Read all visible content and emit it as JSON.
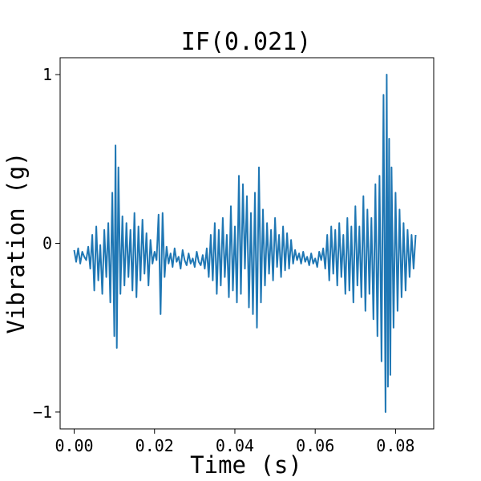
{
  "chart_data": {
    "type": "line",
    "title": "IF(0.021)",
    "xlabel": "Time (s)",
    "ylabel": "Vibration (g)",
    "xlim": [
      -0.0035,
      0.0895
    ],
    "ylim": [
      -1.1,
      1.1
    ],
    "xticks": [
      0.0,
      0.02,
      0.04,
      0.06,
      0.08
    ],
    "xtick_labels": [
      "0.00",
      "0.02",
      "0.04",
      "0.06",
      "0.08"
    ],
    "yticks": [
      -1,
      0,
      1
    ],
    "ytick_labels": [
      "−1",
      "0",
      "1"
    ],
    "grid": false,
    "legend": "none",
    "line_color": "#1f77b4",
    "series": [
      {
        "x": [
          0.0,
          0.0005,
          0.001,
          0.0015,
          0.002,
          0.0025,
          0.003,
          0.0035,
          0.004,
          0.0045,
          0.005,
          0.0055,
          0.006,
          0.0065,
          0.007,
          0.0075,
          0.008,
          0.0085,
          0.009,
          0.0095,
          0.01,
          0.0103,
          0.0106,
          0.011,
          0.0115,
          0.012,
          0.0125,
          0.013,
          0.0135,
          0.014,
          0.0145,
          0.015,
          0.0155,
          0.016,
          0.0165,
          0.017,
          0.0175,
          0.018,
          0.0185,
          0.019,
          0.0195,
          0.02,
          0.0205,
          0.021,
          0.0215,
          0.022,
          0.0225,
          0.023,
          0.0235,
          0.024,
          0.0245,
          0.025,
          0.0255,
          0.026,
          0.0265,
          0.027,
          0.0275,
          0.028,
          0.0285,
          0.029,
          0.0295,
          0.03,
          0.0305,
          0.031,
          0.0315,
          0.032,
          0.0325,
          0.033,
          0.0335,
          0.034,
          0.0345,
          0.035,
          0.0355,
          0.036,
          0.0365,
          0.037,
          0.0375,
          0.038,
          0.0385,
          0.039,
          0.0395,
          0.04,
          0.0405,
          0.041,
          0.0415,
          0.042,
          0.0425,
          0.043,
          0.0435,
          0.044,
          0.0445,
          0.045,
          0.0455,
          0.046,
          0.0465,
          0.047,
          0.0475,
          0.048,
          0.0485,
          0.049,
          0.0495,
          0.05,
          0.0505,
          0.051,
          0.0515,
          0.052,
          0.0525,
          0.053,
          0.0535,
          0.054,
          0.0545,
          0.055,
          0.0555,
          0.056,
          0.0565,
          0.057,
          0.0575,
          0.058,
          0.0585,
          0.059,
          0.0595,
          0.06,
          0.0605,
          0.061,
          0.0615,
          0.062,
          0.0625,
          0.063,
          0.0635,
          0.064,
          0.0645,
          0.065,
          0.0655,
          0.066,
          0.0665,
          0.067,
          0.0675,
          0.068,
          0.0685,
          0.069,
          0.0695,
          0.07,
          0.0705,
          0.071,
          0.0715,
          0.072,
          0.0725,
          0.073,
          0.0735,
          0.074,
          0.0745,
          0.075,
          0.0755,
          0.076,
          0.0765,
          0.077,
          0.0775,
          0.0778,
          0.0781,
          0.0784,
          0.0787,
          0.079,
          0.0795,
          0.08,
          0.0805,
          0.081,
          0.0815,
          0.082,
          0.0825,
          0.083,
          0.0835,
          0.084,
          0.0845,
          0.085
        ],
        "y": [
          -0.04,
          -0.11,
          -0.03,
          -0.12,
          -0.05,
          -0.08,
          -0.1,
          -0.02,
          -0.15,
          0.05,
          -0.28,
          0.1,
          -0.22,
          -0.01,
          -0.3,
          0.08,
          -0.2,
          0.12,
          -0.35,
          0.3,
          -0.55,
          0.58,
          -0.62,
          0.45,
          -0.3,
          0.16,
          -0.25,
          0.12,
          -0.2,
          0.08,
          -0.28,
          0.18,
          -0.32,
          0.1,
          -0.22,
          0.14,
          -0.18,
          0.06,
          -0.25,
          0.02,
          -0.12,
          -0.05,
          -0.1,
          0.17,
          -0.42,
          0.18,
          -0.2,
          -0.02,
          -0.12,
          -0.06,
          -0.14,
          -0.03,
          -0.11,
          -0.08,
          -0.15,
          -0.04,
          -0.1,
          -0.13,
          -0.06,
          -0.12,
          -0.09,
          -0.14,
          -0.05,
          -0.11,
          -0.13,
          -0.07,
          -0.15,
          -0.03,
          -0.2,
          0.05,
          -0.22,
          0.12,
          -0.3,
          0.08,
          -0.25,
          0.15,
          -0.2,
          0.05,
          -0.32,
          0.22,
          -0.28,
          0.1,
          -0.35,
          0.4,
          -0.3,
          0.35,
          -0.15,
          0.28,
          -0.38,
          0.18,
          -0.42,
          0.3,
          -0.5,
          0.45,
          -0.35,
          0.2,
          -0.25,
          0.12,
          -0.18,
          0.08,
          -0.22,
          0.15,
          -0.14,
          0.05,
          -0.2,
          0.1,
          -0.16,
          0.06,
          -0.15,
          0.02,
          -0.12,
          -0.04,
          -0.1,
          -0.06,
          -0.12,
          -0.05,
          -0.11,
          -0.08,
          -0.13,
          -0.06,
          -0.12,
          -0.09,
          -0.14,
          -0.05,
          -0.1,
          -0.03,
          -0.15,
          0.05,
          -0.22,
          0.1,
          -0.18,
          0.08,
          -0.25,
          0.12,
          -0.2,
          0.05,
          -0.3,
          0.15,
          -0.28,
          0.1,
          -0.35,
          0.22,
          -0.25,
          0.1,
          -0.32,
          0.28,
          -0.4,
          0.2,
          -0.3,
          0.15,
          -0.45,
          0.35,
          -0.55,
          0.4,
          -0.7,
          0.88,
          -1.0,
          1.0,
          -0.85,
          0.62,
          -0.78,
          0.45,
          -0.5,
          0.3,
          -0.4,
          0.2,
          -0.32,
          0.12,
          -0.28,
          0.08,
          -0.2,
          0.05,
          -0.15,
          0.05
        ]
      }
    ]
  }
}
